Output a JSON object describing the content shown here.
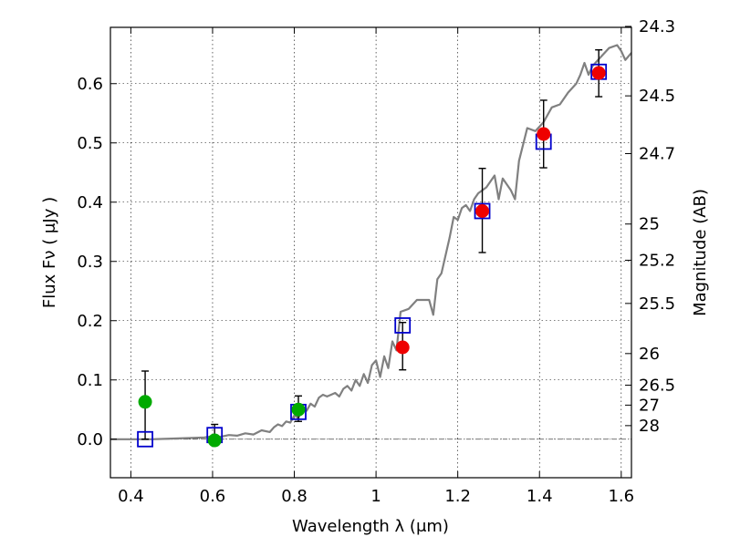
{
  "chart_data": {
    "type": "scatter",
    "title": "",
    "xlabel": "Wavelength  λ (μm)",
    "ylabel": "Flux  Fν  ( μJy )",
    "y2label": "Magnitude (AB)",
    "xlim": [
      0.35,
      1.625
    ],
    "ylim": [
      -0.065,
      0.695
    ],
    "grid": true,
    "x_ticks": [
      0.4,
      0.6,
      0.8,
      1.0,
      1.2,
      1.4,
      1.6
    ],
    "x_tick_labels": [
      "0.4",
      "0.6",
      "0.8",
      "1",
      "1.2",
      "1.4",
      "1.6"
    ],
    "y_ticks": [
      0.0,
      0.1,
      0.2,
      0.3,
      0.4,
      0.5,
      0.6
    ],
    "y_tick_labels": [
      "0.0",
      "0.1",
      "0.2",
      "0.3",
      "0.4",
      "0.5",
      "0.6"
    ],
    "magnitude_ticks": [
      {
        "label": "24.3",
        "flux": 0.6966
      },
      {
        "label": "24.5",
        "flux": 0.5794
      },
      {
        "label": "24.7",
        "flux": 0.4819
      },
      {
        "label": "25",
        "flux": 0.3631
      },
      {
        "label": "25.2",
        "flux": 0.302
      },
      {
        "label": "25.5",
        "flux": 0.2291
      },
      {
        "label": "26",
        "flux": 0.1445
      },
      {
        "label": "26.5",
        "flux": 0.0912
      },
      {
        "label": "27",
        "flux": 0.0575
      },
      {
        "label": "28",
        "flux": 0.0229
      }
    ],
    "series": [
      {
        "kind": "line",
        "color": "#808080",
        "points": [
          [
            0.35,
            0.0
          ],
          [
            0.45,
            0.0
          ],
          [
            0.5,
            0.001
          ],
          [
            0.55,
            0.002
          ],
          [
            0.58,
            0.003
          ],
          [
            0.6,
            0.005
          ],
          [
            0.62,
            0.004
          ],
          [
            0.64,
            0.007
          ],
          [
            0.66,
            0.006
          ],
          [
            0.68,
            0.01
          ],
          [
            0.7,
            0.008
          ],
          [
            0.72,
            0.015
          ],
          [
            0.74,
            0.012
          ],
          [
            0.75,
            0.02
          ],
          [
            0.76,
            0.025
          ],
          [
            0.77,
            0.022
          ],
          [
            0.78,
            0.03
          ],
          [
            0.79,
            0.028
          ],
          [
            0.8,
            0.04
          ],
          [
            0.81,
            0.036
          ],
          [
            0.82,
            0.05
          ],
          [
            0.83,
            0.048
          ],
          [
            0.84,
            0.06
          ],
          [
            0.85,
            0.055
          ],
          [
            0.86,
            0.07
          ],
          [
            0.87,
            0.075
          ],
          [
            0.88,
            0.072
          ],
          [
            0.89,
            0.075
          ],
          [
            0.9,
            0.078
          ],
          [
            0.91,
            0.072
          ],
          [
            0.92,
            0.085
          ],
          [
            0.93,
            0.09
          ],
          [
            0.94,
            0.082
          ],
          [
            0.95,
            0.1
          ],
          [
            0.96,
            0.09
          ],
          [
            0.97,
            0.11
          ],
          [
            0.98,
            0.095
          ],
          [
            0.99,
            0.125
          ],
          [
            1.0,
            0.133
          ],
          [
            1.01,
            0.105
          ],
          [
            1.02,
            0.14
          ],
          [
            1.03,
            0.12
          ],
          [
            1.04,
            0.165
          ],
          [
            1.05,
            0.15
          ],
          [
            1.06,
            0.215
          ],
          [
            1.08,
            0.22
          ],
          [
            1.1,
            0.235
          ],
          [
            1.13,
            0.235
          ],
          [
            1.14,
            0.21
          ],
          [
            1.15,
            0.27
          ],
          [
            1.16,
            0.28
          ],
          [
            1.18,
            0.34
          ],
          [
            1.19,
            0.375
          ],
          [
            1.2,
            0.37
          ],
          [
            1.21,
            0.39
          ],
          [
            1.22,
            0.395
          ],
          [
            1.23,
            0.385
          ],
          [
            1.24,
            0.405
          ],
          [
            1.25,
            0.415
          ],
          [
            1.27,
            0.425
          ],
          [
            1.29,
            0.445
          ],
          [
            1.3,
            0.405
          ],
          [
            1.31,
            0.44
          ],
          [
            1.33,
            0.42
          ],
          [
            1.34,
            0.405
          ],
          [
            1.35,
            0.47
          ],
          [
            1.37,
            0.525
          ],
          [
            1.39,
            0.52
          ],
          [
            1.41,
            0.535
          ],
          [
            1.43,
            0.56
          ],
          [
            1.45,
            0.565
          ],
          [
            1.47,
            0.585
          ],
          [
            1.49,
            0.6
          ],
          [
            1.5,
            0.615
          ],
          [
            1.51,
            0.635
          ],
          [
            1.52,
            0.615
          ],
          [
            1.53,
            0.63
          ],
          [
            1.55,
            0.645
          ],
          [
            1.57,
            0.66
          ],
          [
            1.59,
            0.665
          ],
          [
            1.6,
            0.655
          ],
          [
            1.61,
            0.64
          ],
          [
            1.625,
            0.652
          ]
        ]
      },
      {
        "kind": "open-square",
        "color": "#0000cc",
        "points": [
          [
            0.435,
            0.0
          ],
          [
            0.605,
            0.007
          ],
          [
            0.81,
            0.046
          ],
          [
            1.065,
            0.192
          ],
          [
            1.26,
            0.385
          ],
          [
            1.41,
            0.502
          ],
          [
            1.545,
            0.62
          ]
        ]
      },
      {
        "kind": "filled-circle",
        "color": "#00aa00",
        "points": [
          [
            0.435,
            0.063
          ],
          [
            0.605,
            -0.002
          ],
          [
            0.81,
            0.05
          ]
        ]
      },
      {
        "kind": "filled-circle",
        "color": "#ee0000",
        "points": [
          [
            1.065,
            0.155
          ],
          [
            1.26,
            0.385
          ],
          [
            1.41,
            0.515
          ],
          [
            1.545,
            0.618
          ]
        ]
      },
      {
        "kind": "errorbar",
        "color": "#000000",
        "items": [
          {
            "x": 0.435,
            "low": 0.0,
            "high": 0.115
          },
          {
            "x": 0.605,
            "low": -0.002,
            "high": 0.025
          },
          {
            "x": 0.81,
            "low": 0.03,
            "high": 0.073
          },
          {
            "x": 1.065,
            "low": 0.117,
            "high": 0.197
          },
          {
            "x": 1.26,
            "low": 0.315,
            "high": 0.457
          },
          {
            "x": 1.41,
            "low": 0.458,
            "high": 0.572
          },
          {
            "x": 1.545,
            "low": 0.578,
            "high": 0.657
          }
        ]
      }
    ]
  }
}
